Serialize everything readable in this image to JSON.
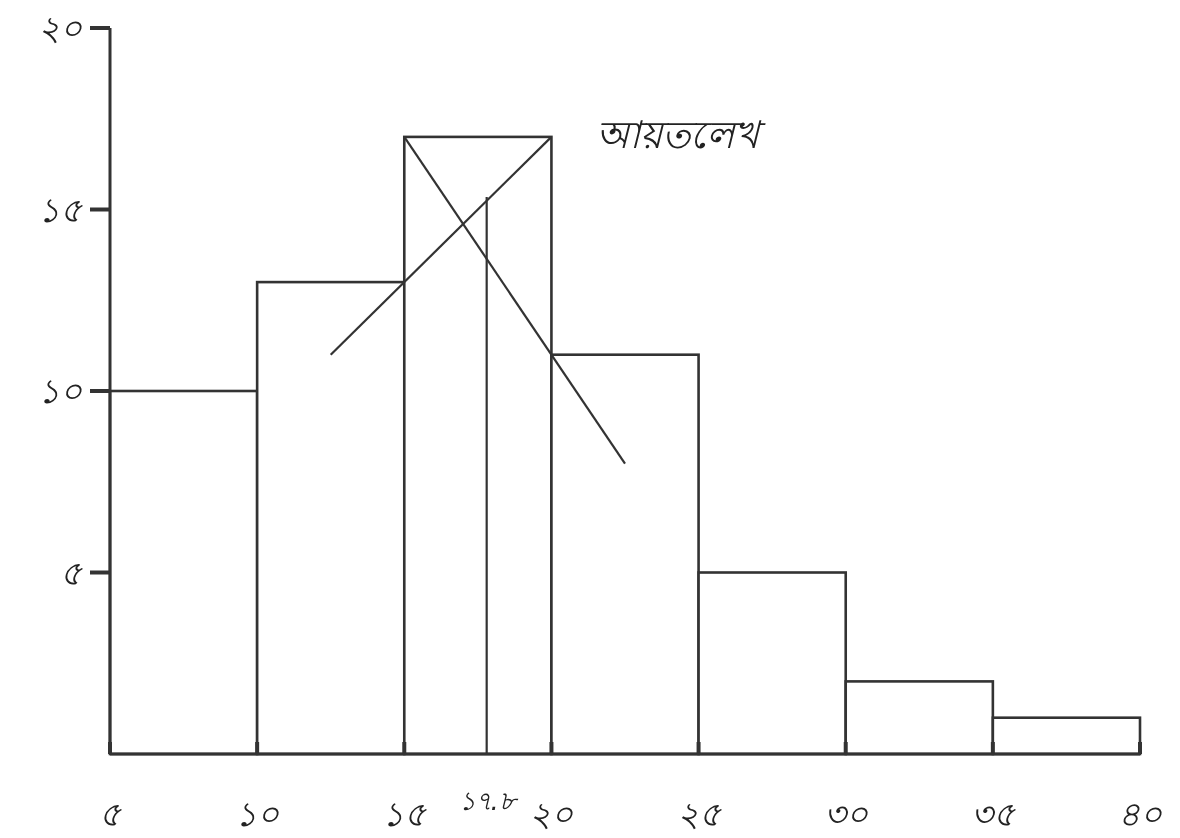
{
  "chart_data": {
    "type": "histogram",
    "bins": [
      5,
      10,
      15,
      20,
      25,
      30,
      35,
      40
    ],
    "values": [
      10,
      13,
      17,
      11,
      5,
      2,
      1
    ],
    "color": "#ffffff",
    "xlim": [
      5,
      40
    ],
    "xticks": [
      {
        "value": 5,
        "label": "৫"
      },
      {
        "value": 10,
        "label": "১০"
      },
      {
        "value": 15,
        "label": "১৫"
      },
      {
        "value": 20,
        "label": "২০"
      },
      {
        "value": 25,
        "label": "২৫"
      },
      {
        "value": 30,
        "label": "৩০"
      },
      {
        "value": 35,
        "label": "৩৫"
      },
      {
        "value": 40,
        "label": "৪০"
      }
    ],
    "ylim": [
      0,
      20
    ],
    "yticks": [
      {
        "value": 5,
        "label": "৫"
      },
      {
        "value": 10,
        "label": "১০"
      },
      {
        "value": 15,
        "label": "১৫"
      },
      {
        "value": 20,
        "label": "২০"
      }
    ],
    "ref_lines": [
      {
        "axis": "x",
        "value": 17.8,
        "label": "১৭.৮"
      }
    ],
    "annotations": [
      "আয়তলেখ"
    ],
    "grid": false
  }
}
